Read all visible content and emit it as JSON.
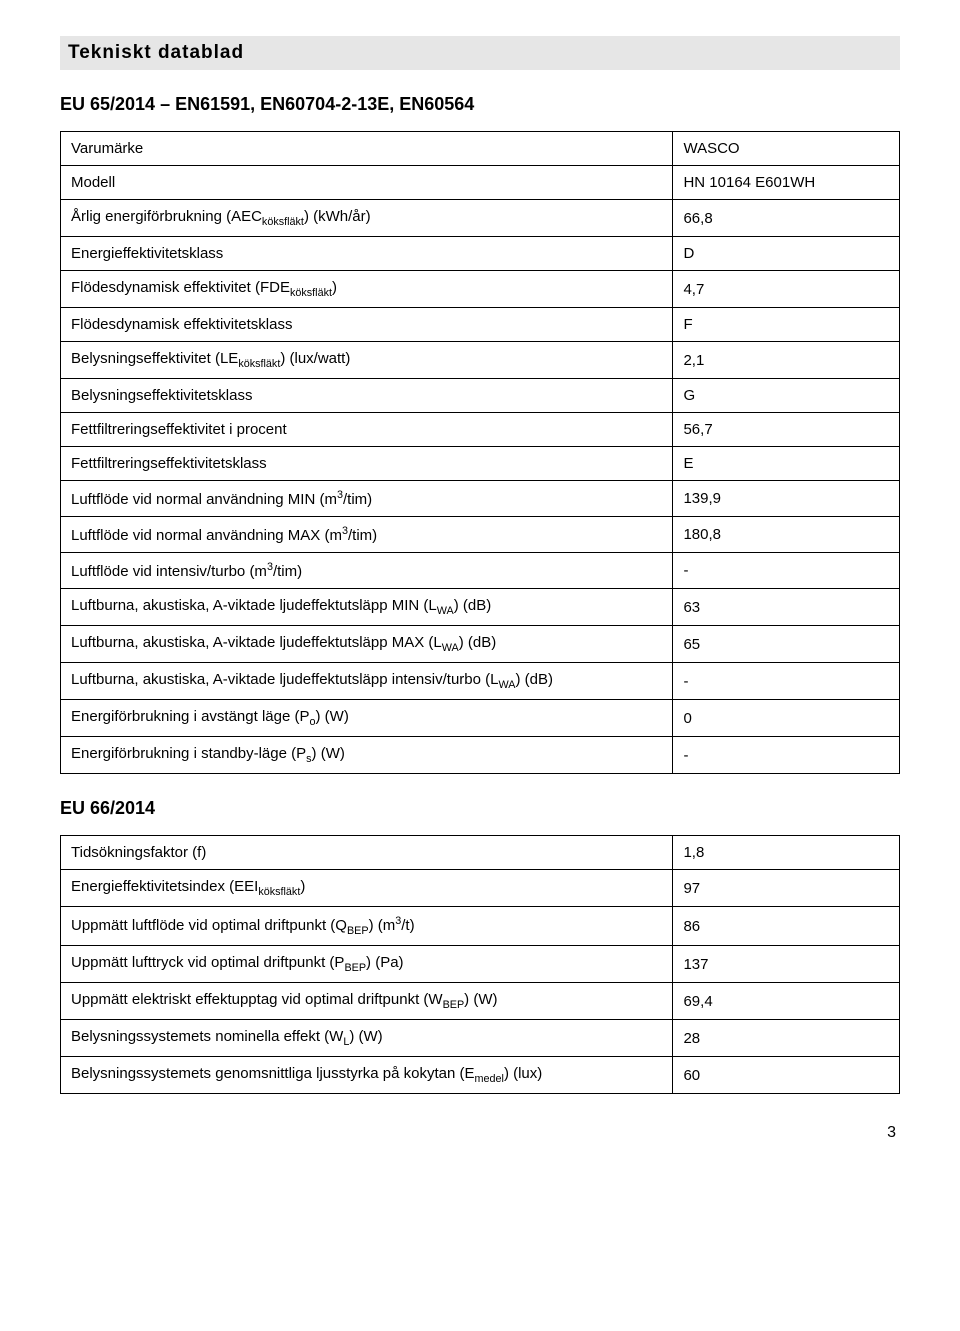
{
  "doc": {
    "title": "Tekniskt datablad",
    "page_number": "3"
  },
  "section1": {
    "title": "EU 65/2014 – EN61591, EN60704-2-13E, EN60564",
    "rows": [
      {
        "label_html": "Varumärke",
        "value": "WASCO"
      },
      {
        "label_html": "Modell",
        "value": "HN 10164 E601WH"
      },
      {
        "label_html": "Årlig energiförbrukning (AEC<sub>köksfläkt</sub>) (kWh/år)",
        "value": "66,8"
      },
      {
        "label_html": "Energieffektivitetsklass",
        "value": "D"
      },
      {
        "label_html": "Flödesdynamisk effektivitet (FDE<sub>köksfläkt</sub>)",
        "value": "4,7"
      },
      {
        "label_html": "Flödesdynamisk effektivitetsklass",
        "value": "F"
      },
      {
        "label_html": "Belysningseffektivitet (LE<sub>köksfläkt</sub>) (lux/watt)",
        "value": "2,1"
      },
      {
        "label_html": "Belysningseffektivitetsklass",
        "value": "G"
      },
      {
        "label_html": "Fettfiltreringseffektivitet i procent",
        "value": "56,7"
      },
      {
        "label_html": "Fettfiltreringseffektivitetsklass",
        "value": "E"
      },
      {
        "label_html": "Luftflöde vid normal användning MIN (m<sup>3</sup>/tim)",
        "value": "139,9"
      },
      {
        "label_html": "Luftflöde vid normal användning MAX (m<sup>3</sup>/tim)",
        "value": "180,8"
      },
      {
        "label_html": "Luftflöde vid intensiv/turbo (m<sup>3</sup>/tim)",
        "value": "-"
      },
      {
        "label_html": "Luftburna, akustiska, A-viktade ljudeffektutsläpp MIN (L<sub>WA</sub>) (dB)",
        "value": "63"
      },
      {
        "label_html": "Luftburna, akustiska, A-viktade ljudeffektutsläpp MAX (L<sub>WA</sub>) (dB)",
        "value": "65"
      },
      {
        "label_html": "Luftburna, akustiska, A-viktade ljudeffektutsläpp intensiv/turbo (L<sub>WA</sub>) (dB)",
        "value": "-"
      },
      {
        "label_html": "Energiförbrukning i avstängt läge (P<sub>o</sub>) (W)",
        "value": "0"
      },
      {
        "label_html": "Energiförbrukning i standby-läge (P<sub>s</sub>) (W)",
        "value": "-"
      }
    ]
  },
  "section2": {
    "title": "EU 66/2014",
    "rows": [
      {
        "label_html": "Tidsökningsfaktor (f)",
        "value": "1,8"
      },
      {
        "label_html": "Energieffektivitetsindex (EEI<sub>köksfläkt</sub>)",
        "value": "97"
      },
      {
        "label_html": "Uppmätt luftflöde vid optimal driftpunkt (Q<sub>BEP</sub>) (m<sup>3</sup>/t)",
        "value": "86"
      },
      {
        "label_html": "Uppmätt lufttryck vid optimal driftpunkt (P<sub>BEP</sub>) (Pa)",
        "value": "137"
      },
      {
        "label_html": "Uppmätt elektriskt effektupptag vid optimal driftpunkt (W<sub>BEP</sub>) (W)",
        "value": "69,4"
      },
      {
        "label_html": "Belysningssystemets nominella effekt (W<sub>L</sub>) (W)",
        "value": "28"
      },
      {
        "label_html": "Belysningssystemets genomsnittliga ljusstyrka på kokytan (E<sub>medel</sub>) (lux)",
        "value": "60"
      }
    ]
  }
}
